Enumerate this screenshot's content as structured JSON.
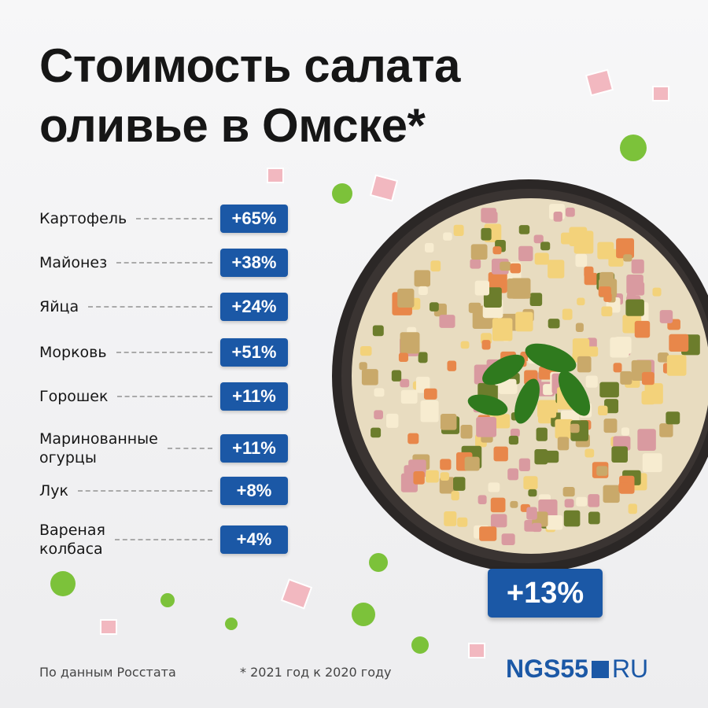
{
  "title": "Стоимость салата\nоливье в Омске*",
  "items": [
    {
      "label": "Картофель",
      "change": "+65%"
    },
    {
      "label": "Майонез",
      "change": "+38%"
    },
    {
      "label": "Яйца",
      "change": "+24%"
    },
    {
      "label": "Морковь",
      "change": "+51%"
    },
    {
      "label": "Горошек",
      "change": "+11%"
    },
    {
      "label": "Маринованные\nогурцы",
      "change": "+11%"
    },
    {
      "label": "Лук",
      "change": "+8%"
    },
    {
      "label": "Вареная\nколбаса",
      "change": "+4%"
    }
  ],
  "total": "+13%",
  "source": "По данным Росстата",
  "footnote": "* 2021 год к 2020 году",
  "logo": {
    "main": "NGS55",
    "domain": "RU"
  }
}
